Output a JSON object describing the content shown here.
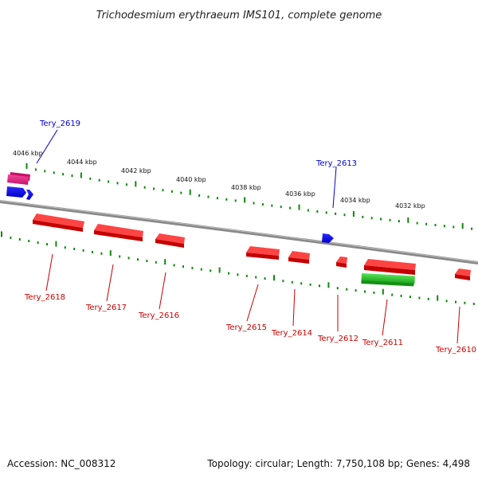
{
  "title": "Trichodesmium erythraeum IMS101, complete genome",
  "footer": {
    "accession": "Accession: NC_008312",
    "summary": "Topology: circular; Length: 7,750,108 bp; Genes: 4,498"
  },
  "scale_labels": [
    "4046 kbp",
    "4044 kbp",
    "4042 kbp",
    "4040 kbp",
    "4038 kbp",
    "4036 kbp",
    "4034 kbp",
    "4032 kbp"
  ],
  "colors": {
    "forward": "#0000ee",
    "reverse": "#ee0000",
    "rna": "#e6207a",
    "other": "#22bb22",
    "backbone": "#888888",
    "ticks": "#118811"
  },
  "genes_reverse": [
    {
      "name": "Tery_2618",
      "color": "#ee0000"
    },
    {
      "name": "Tery_2617",
      "color": "#ee0000"
    },
    {
      "name": "Tery_2616",
      "color": "#ee0000"
    },
    {
      "name": "Tery_2615",
      "color": "#ee0000"
    },
    {
      "name": "Tery_2614",
      "color": "#ee0000"
    },
    {
      "name": "Tery_2612",
      "color": "#ee0000"
    },
    {
      "name": "Tery_2611",
      "color": "#ee0000"
    },
    {
      "name": "Tery_2610",
      "color": "#ee0000"
    }
  ],
  "genes_forward": [
    {
      "name": "Tery_2619",
      "color": "#0000ee"
    },
    {
      "name": "Tery_2613",
      "color": "#0000ee"
    }
  ]
}
